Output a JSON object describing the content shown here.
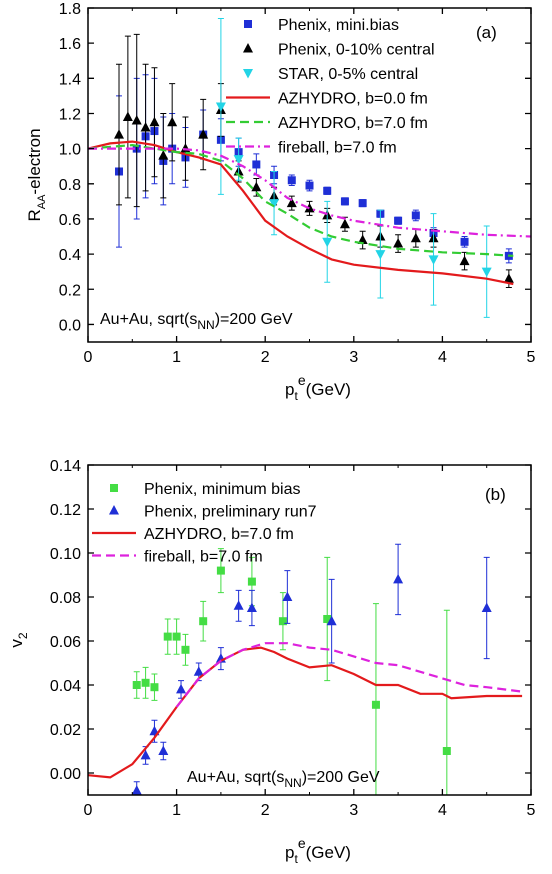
{
  "chart_data": [
    {
      "type": "scatter",
      "panel_label": "(a)",
      "ylabel": {
        "main": "R",
        "sub": "AA",
        "rest": "-electron"
      },
      "xlabel": {
        "main": "p",
        "sub": "t",
        "sup": "e",
        "rest": "(GeV)"
      },
      "annotation": {
        "main": "Au+Au, sqrt(s",
        "sub": "NN",
        "rest": ")=200 GeV"
      },
      "xlim": [
        0,
        5
      ],
      "ylim": [
        -0.1,
        1.8
      ],
      "xticks": [
        0,
        1,
        2,
        3,
        4,
        5
      ],
      "yticks": [
        0.0,
        0.2,
        0.4,
        0.6,
        0.8,
        1.0,
        1.2,
        1.4,
        1.6,
        1.8
      ],
      "ytick_labels": [
        "0.0",
        "0.2",
        "0.4",
        "0.6",
        "0.8",
        "1.0",
        "1.2",
        "1.4",
        "1.6",
        "1.8"
      ],
      "legend_position": "top-right",
      "series": [
        {
          "name": "Phenix, mini.bias",
          "kind": "points",
          "marker": "square",
          "color": "#1f2fd6",
          "x": [
            0.35,
            0.55,
            0.65,
            0.75,
            0.85,
            0.95,
            1.1,
            1.3,
            1.5,
            1.7,
            1.9,
            2.1,
            2.3,
            2.5,
            2.7,
            2.9,
            3.1,
            3.3,
            3.5,
            3.7,
            3.9,
            4.25,
            4.75
          ],
          "y": [
            0.87,
            1.0,
            1.07,
            1.1,
            0.93,
            1.0,
            0.95,
            1.08,
            1.05,
            0.98,
            0.91,
            0.85,
            0.82,
            0.79,
            0.76,
            0.7,
            0.69,
            0.63,
            0.59,
            0.62,
            0.52,
            0.47,
            0.39
          ],
          "err": [
            0.43,
            0.4,
            0.35,
            0.3,
            0.25,
            0.2,
            0.17,
            0.14,
            0.12,
            0.08,
            0.06,
            0.05,
            0.03,
            0.03,
            0.02,
            0.02,
            0.02,
            0.02,
            0.02,
            0.03,
            0.03,
            0.03,
            0.04
          ]
        },
        {
          "name": "Phenix, 0-10% central",
          "kind": "points",
          "marker": "triangle-up",
          "color": "#000000",
          "x": [
            0.35,
            0.45,
            0.55,
            0.65,
            0.75,
            0.85,
            0.95,
            1.1,
            1.3,
            1.5,
            1.7,
            1.9,
            2.1,
            2.3,
            2.5,
            2.7,
            2.9,
            3.1,
            3.3,
            3.5,
            3.7,
            3.9,
            4.25,
            4.75
          ],
          "y": [
            1.08,
            1.18,
            1.16,
            1.12,
            1.15,
            0.96,
            1.15,
            1.0,
            1.08,
            1.22,
            0.87,
            0.78,
            0.73,
            0.69,
            0.66,
            0.62,
            0.57,
            0.48,
            0.5,
            0.46,
            0.49,
            0.49,
            0.36,
            0.26
          ],
          "err": [
            0.4,
            0.46,
            0.49,
            0.36,
            0.31,
            0.24,
            0.22,
            0.18,
            0.2,
            0.15,
            0.06,
            0.05,
            0.05,
            0.04,
            0.04,
            0.04,
            0.04,
            0.05,
            0.06,
            0.05,
            0.05,
            0.05,
            0.05,
            0.05
          ]
        },
        {
          "name": "STAR, 0-5% central",
          "kind": "points",
          "marker": "triangle-down",
          "color": "#22d4e6",
          "x": [
            1.5,
            1.7,
            2.1,
            2.7,
            3.3,
            3.9,
            4.5
          ],
          "y": [
            1.24,
            0.94,
            0.69,
            0.47,
            0.4,
            0.37,
            0.3
          ],
          "err": [
            0.5,
            0.12,
            0.18,
            0.23,
            0.25,
            0.26,
            0.26
          ]
        },
        {
          "name": "AZHYDRO, b=0.0 fm",
          "kind": "line",
          "dash": "solid",
          "color": "#e31a1c",
          "x": [
            0,
            0.25,
            0.5,
            0.75,
            1.0,
            1.25,
            1.5,
            1.75,
            2.0,
            2.25,
            2.5,
            2.75,
            3.0,
            3.5,
            4.0,
            4.5,
            4.8
          ],
          "y": [
            1.0,
            1.03,
            1.04,
            1.02,
            0.98,
            0.95,
            0.91,
            0.76,
            0.59,
            0.5,
            0.43,
            0.37,
            0.34,
            0.31,
            0.29,
            0.26,
            0.23
          ]
        },
        {
          "name": "AZHYDRO, b=7.0 fm",
          "kind": "line",
          "dash": "dashed",
          "color": "#33cc33",
          "x": [
            0,
            0.5,
            1.0,
            1.25,
            1.5,
            1.75,
            2.0,
            2.25,
            2.5,
            2.75,
            3.0,
            3.5,
            4.0,
            4.5,
            4.8
          ],
          "y": [
            1.0,
            1.02,
            0.98,
            0.97,
            0.93,
            0.83,
            0.7,
            0.63,
            0.55,
            0.5,
            0.47,
            0.43,
            0.41,
            0.4,
            0.39
          ]
        },
        {
          "name": "fireball, b=7.0 fm",
          "kind": "line",
          "dash": "dashdot",
          "color": "#dd22dd",
          "x": [
            0,
            0.5,
            1.0,
            1.25,
            1.5,
            1.75,
            2.0,
            2.25,
            2.5,
            2.75,
            3.0,
            3.5,
            4.0,
            4.5,
            5.0
          ],
          "y": [
            1.0,
            1.0,
            1.0,
            0.99,
            0.96,
            0.9,
            0.82,
            0.72,
            0.66,
            0.62,
            0.59,
            0.55,
            0.53,
            0.51,
            0.5
          ]
        }
      ]
    },
    {
      "type": "scatter",
      "panel_label": "(b)",
      "ylabel": {
        "main": "v",
        "sub": "2",
        "rest": ""
      },
      "xlabel": {
        "main": "p",
        "sub": "t",
        "sup": "e",
        "rest": "(GeV)"
      },
      "annotation": {
        "main": "Au+Au, sqrt(s",
        "sub": "NN",
        "rest": ")=200 GeV"
      },
      "xlim": [
        0,
        5
      ],
      "ylim": [
        -0.01,
        0.14
      ],
      "xticks": [
        0,
        1,
        2,
        3,
        4,
        5
      ],
      "yticks": [
        0.0,
        0.02,
        0.04,
        0.06,
        0.08,
        0.1,
        0.12,
        0.14
      ],
      "ytick_labels": [
        "0.00",
        "0.02",
        "0.04",
        "0.06",
        "0.08",
        "0.10",
        "0.12",
        "0.14"
      ],
      "legend_position": "top-left",
      "series": [
        {
          "name": "Phenix, minimum bias",
          "kind": "points",
          "marker": "square",
          "color": "#44dd44",
          "x": [
            0.55,
            0.65,
            0.75,
            0.9,
            1.0,
            1.1,
            1.3,
            1.5,
            1.85,
            2.2,
            2.7,
            3.25,
            4.05
          ],
          "y": [
            0.04,
            0.041,
            0.039,
            0.062,
            0.062,
            0.056,
            0.069,
            0.092,
            0.087,
            0.069,
            0.07,
            0.031,
            0.01
          ],
          "err": [
            0.006,
            0.007,
            0.006,
            0.008,
            0.008,
            0.007,
            0.009,
            0.01,
            0.011,
            0.013,
            0.028,
            0.046,
            0.064
          ]
        },
        {
          "name": "Phenix, preliminary run7",
          "kind": "points",
          "marker": "triangle-up",
          "color": "#1f2fd6",
          "x": [
            0.55,
            0.65,
            0.75,
            0.85,
            1.05,
            1.25,
            1.5,
            1.7,
            1.85,
            2.25,
            2.75,
            3.5,
            4.5
          ],
          "y": [
            -0.008,
            0.008,
            0.019,
            0.01,
            0.038,
            0.046,
            0.052,
            0.076,
            0.075,
            0.08,
            0.069,
            0.088,
            0.075
          ],
          "err": [
            0.004,
            0.004,
            0.005,
            0.004,
            0.004,
            0.004,
            0.005,
            0.007,
            0.008,
            0.012,
            0.019,
            0.016,
            0.023
          ]
        },
        {
          "name": "AZHYDRO, b=7.0 fm",
          "kind": "line",
          "dash": "solid",
          "color": "#e31a1c",
          "x": [
            0,
            0.25,
            0.5,
            0.75,
            1.0,
            1.25,
            1.5,
            1.75,
            1.95,
            2.1,
            2.25,
            2.5,
            2.75,
            3.0,
            3.25,
            3.5,
            3.75,
            4.0,
            4.1,
            4.5,
            4.9
          ],
          "y": [
            -0.001,
            -0.002,
            0.004,
            0.016,
            0.03,
            0.043,
            0.051,
            0.056,
            0.057,
            0.055,
            0.052,
            0.048,
            0.049,
            0.045,
            0.04,
            0.04,
            0.036,
            0.036,
            0.034,
            0.035,
            0.035
          ]
        },
        {
          "name": "fireball, b=7.0 fm",
          "kind": "line",
          "dash": "dashed",
          "color": "#dd22dd",
          "x": [
            1.0,
            1.25,
            1.5,
            1.75,
            2.0,
            2.25,
            2.5,
            2.75,
            3.0,
            3.25,
            3.5,
            3.75,
            4.0,
            4.25,
            4.5,
            4.9
          ],
          "y": [
            0.03,
            0.043,
            0.051,
            0.056,
            0.059,
            0.059,
            0.057,
            0.056,
            0.053,
            0.05,
            0.049,
            0.046,
            0.043,
            0.04,
            0.039,
            0.037
          ]
        }
      ]
    }
  ]
}
